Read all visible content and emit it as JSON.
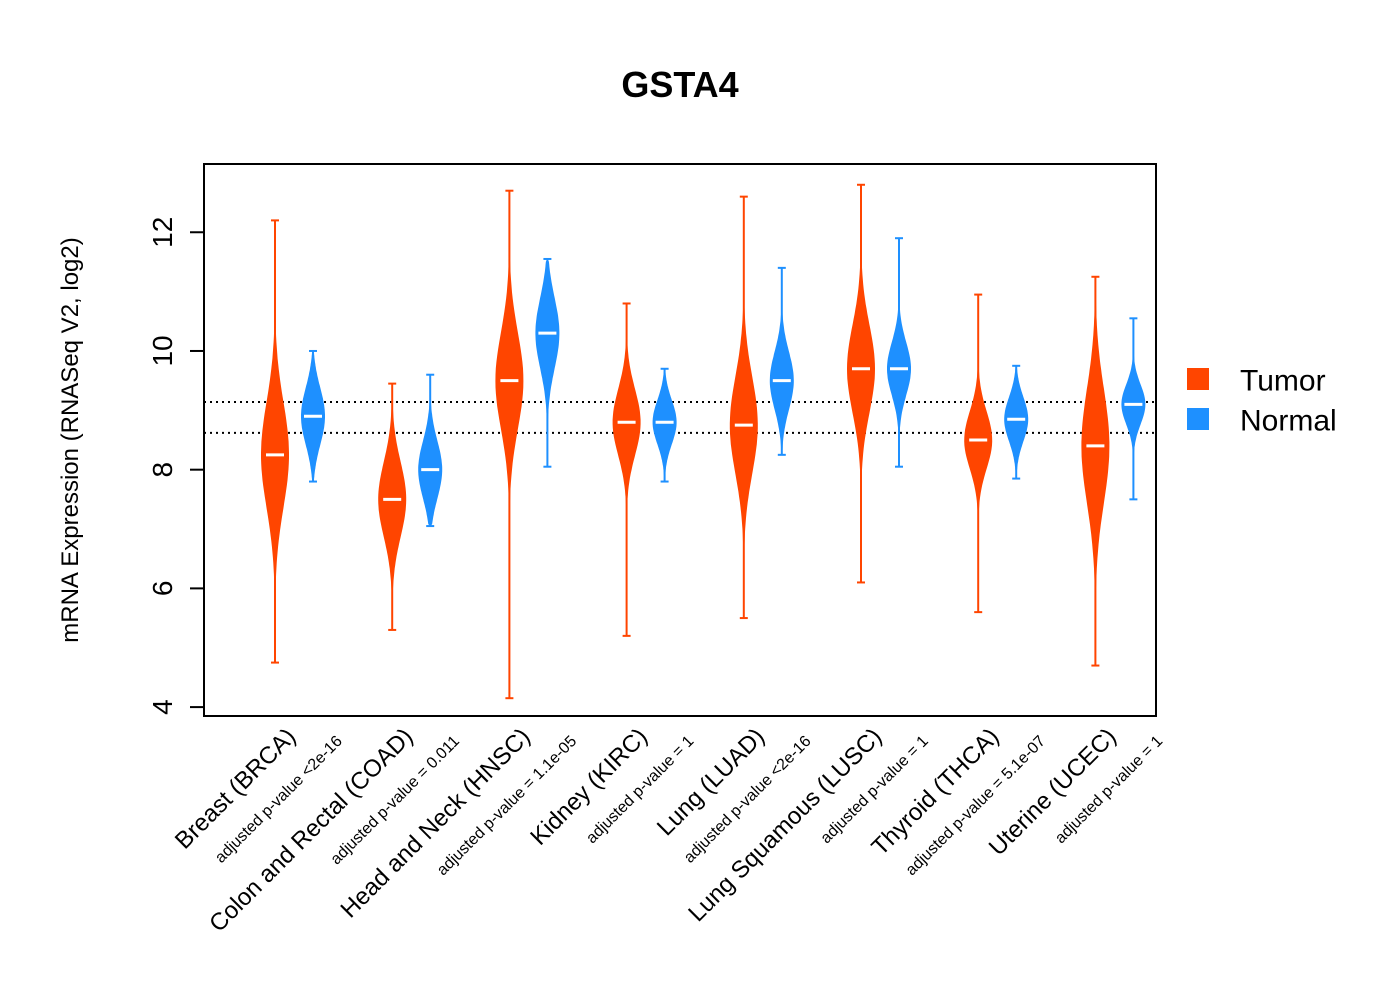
{
  "chart_data": {
    "type": "violin",
    "title": "GSTA4",
    "ylabel": "mRNA Expression (RNASeq V2, log2)",
    "ylim": [
      3.85,
      13.15
    ],
    "yticks": [
      4,
      6,
      8,
      10,
      12
    ],
    "reference_lines": [
      8.62,
      9.14
    ],
    "legend": {
      "position": "right",
      "entries": [
        {
          "label": "Tumor",
          "color": "#FF4500"
        },
        {
          "label": "Normal",
          "color": "#1E90FF"
        }
      ]
    },
    "categories": [
      {
        "label": "Breast (BRCA)",
        "pvalue": "adjusted p-value <2e-16",
        "tumor": {
          "min": 4.75,
          "max": 12.2,
          "median": 8.25,
          "q1": 7.7,
          "q3": 8.9
        },
        "normal": {
          "min": 7.8,
          "max": 10.0,
          "median": 8.9,
          "q1": 8.6,
          "q3": 9.25
        }
      },
      {
        "label": "Colon and Rectal (COAD)",
        "pvalue": "adjusted p-value = 0.011",
        "tumor": {
          "min": 5.3,
          "max": 9.45,
          "median": 7.5,
          "q1": 7.1,
          "q3": 7.95
        },
        "normal": {
          "min": 7.05,
          "max": 9.6,
          "median": 8.0,
          "q1": 7.7,
          "q3": 8.35
        }
      },
      {
        "label": "Head and Neck (HNSC)",
        "pvalue": "adjusted p-value = 1.1e-05",
        "tumor": {
          "min": 4.15,
          "max": 12.7,
          "median": 9.5,
          "q1": 9.0,
          "q3": 10.1
        },
        "normal": {
          "min": 8.05,
          "max": 11.55,
          "median": 10.3,
          "q1": 9.9,
          "q3": 10.7
        }
      },
      {
        "label": "Kidney (KIRC)",
        "pvalue": "adjusted p-value = 1",
        "tumor": {
          "min": 5.2,
          "max": 10.8,
          "median": 8.8,
          "q1": 8.45,
          "q3": 9.2
        },
        "normal": {
          "min": 7.8,
          "max": 9.7,
          "median": 8.8,
          "q1": 8.55,
          "q3": 9.05
        }
      },
      {
        "label": "Lung (LUAD)",
        "pvalue": "adjusted p-value <2e-16",
        "tumor": {
          "min": 5.5,
          "max": 12.6,
          "median": 8.75,
          "q1": 8.2,
          "q3": 9.3
        },
        "normal": {
          "min": 8.25,
          "max": 11.4,
          "median": 9.5,
          "q1": 9.2,
          "q3": 9.85
        }
      },
      {
        "label": "Lung Squamous (LUSC)",
        "pvalue": "adjusted p-value = 1",
        "tumor": {
          "min": 6.1,
          "max": 12.8,
          "median": 9.7,
          "q1": 9.2,
          "q3": 10.2
        },
        "normal": {
          "min": 8.05,
          "max": 11.9,
          "median": 9.7,
          "q1": 9.4,
          "q3": 10.0
        }
      },
      {
        "label": "Thyroid (THCA)",
        "pvalue": "adjusted p-value = 5.1e-07",
        "tumor": {
          "min": 5.6,
          "max": 10.95,
          "median": 8.5,
          "q1": 8.2,
          "q3": 8.85
        },
        "normal": {
          "min": 7.85,
          "max": 9.75,
          "median": 8.85,
          "q1": 8.6,
          "q3": 9.1
        }
      },
      {
        "label": "Uterine (UCEC)",
        "pvalue": "adjusted p-value = 1",
        "tumor": {
          "min": 4.7,
          "max": 11.25,
          "median": 8.4,
          "q1": 7.8,
          "q3": 9.1
        },
        "normal": {
          "min": 7.5,
          "max": 10.55,
          "median": 9.1,
          "q1": 8.85,
          "q3": 9.3
        }
      }
    ]
  }
}
